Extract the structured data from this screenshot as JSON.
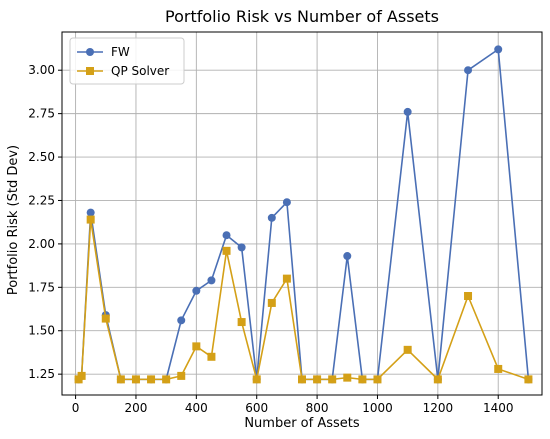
{
  "chart_data": {
    "type": "line",
    "title": "Portfolio Risk vs Number of Assets",
    "xlabel": "Number of Assets",
    "ylabel": "Portfolio Risk (Std Dev)",
    "xlim": [
      -45,
      1545
    ],
    "ylim": [
      1.13,
      3.22
    ],
    "xticks": [
      0,
      200,
      400,
      600,
      800,
      1000,
      1200,
      1400
    ],
    "yticks": [
      1.25,
      1.5,
      1.75,
      2.0,
      2.25,
      2.5,
      2.75,
      3.0
    ],
    "ytick_labels": [
      "1.25",
      "1.50",
      "1.75",
      "2.00",
      "2.25",
      "2.50",
      "2.75",
      "3.00"
    ],
    "grid": true,
    "legend_position": "top-left",
    "x": [
      10,
      20,
      50,
      100,
      150,
      200,
      250,
      300,
      350,
      400,
      450,
      500,
      550,
      600,
      650,
      700,
      750,
      800,
      850,
      900,
      950,
      1000,
      1100,
      1200,
      1300,
      1400,
      1500
    ],
    "series": [
      {
        "name": "FW",
        "color": "#4a6fb5",
        "marker": "circle",
        "values": [
          1.22,
          1.24,
          2.18,
          1.59,
          1.22,
          1.22,
          1.22,
          1.22,
          1.56,
          1.73,
          1.79,
          2.05,
          1.98,
          1.22,
          2.15,
          2.24,
          1.22,
          1.22,
          1.22,
          1.93,
          1.22,
          1.22,
          2.76,
          1.22,
          3.0,
          3.12,
          1.22
        ]
      },
      {
        "name": "QP Solver",
        "color": "#d4a017",
        "marker": "square",
        "values": [
          1.22,
          1.24,
          2.14,
          1.57,
          1.22,
          1.22,
          1.22,
          1.22,
          1.24,
          1.41,
          1.35,
          1.96,
          1.55,
          1.22,
          1.66,
          1.8,
          1.22,
          1.22,
          1.22,
          1.23,
          1.22,
          1.22,
          1.39,
          1.22,
          1.7,
          1.28,
          1.22
        ]
      }
    ]
  }
}
